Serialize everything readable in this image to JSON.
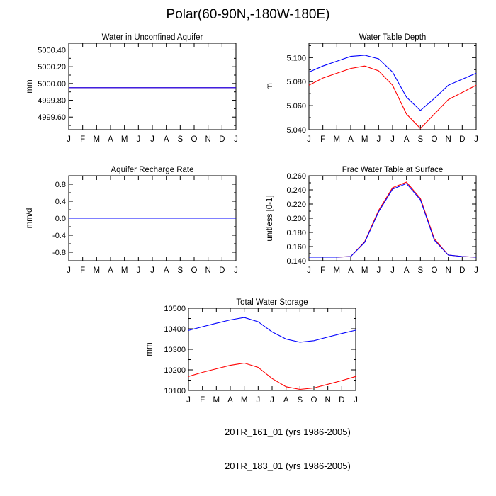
{
  "page": {
    "title": "Polar(60-90N,-180W-180E)"
  },
  "legend": [
    {
      "label": "20TR_161_01 (yrs 1986-2005)",
      "color": "#0000ff"
    },
    {
      "label": "20TR_183_01 (yrs 1986-2005)",
      "color": "#ff0000"
    }
  ],
  "chart_data": [
    {
      "type": "line",
      "title": "Water in Unconfined Aquifer",
      "xlabel": "",
      "ylabel": "mm",
      "categories": [
        "J",
        "F",
        "M",
        "A",
        "M",
        "J",
        "J",
        "A",
        "S",
        "O",
        "N",
        "D",
        "J"
      ],
      "ylim": [
        4999.45,
        5000.48
      ],
      "yticks": [
        4999.6,
        4999.8,
        5000.0,
        5000.2,
        5000.4
      ],
      "ytick_labels": [
        "4999.60",
        "4999.80",
        "5000.00",
        "5000.20",
        "5000.40"
      ],
      "series": [
        {
          "name": "20TR_161_01 (yrs 1986-2005)",
          "color": "#0000ff",
          "values": [
            4999.95,
            4999.95,
            4999.95,
            4999.95,
            4999.95,
            4999.95,
            4999.95,
            4999.95,
            4999.95,
            4999.95,
            4999.95,
            4999.95,
            4999.95
          ]
        },
        {
          "name": "20TR_183_01 (yrs 1986-2005)",
          "color": "#ff0000",
          "values": [
            4999.95,
            4999.95,
            4999.95,
            4999.95,
            4999.95,
            4999.95,
            4999.95,
            4999.95,
            4999.95,
            4999.95,
            4999.95,
            4999.95,
            4999.95
          ]
        }
      ]
    },
    {
      "type": "line",
      "title": "Water Table Depth",
      "xlabel": "",
      "ylabel": "m",
      "categories": [
        "J",
        "F",
        "M",
        "A",
        "M",
        "J",
        "J",
        "A",
        "S",
        "O",
        "N",
        "D",
        "J"
      ],
      "ylim": [
        5.04,
        5.112
      ],
      "yticks": [
        5.04,
        5.06,
        5.08,
        5.1
      ],
      "ytick_labels": [
        "5.040",
        "5.060",
        "5.080",
        "5.100"
      ],
      "series": [
        {
          "name": "20TR_161_01 (yrs 1986-2005)",
          "color": "#0000ff",
          "values": [
            5.088,
            5.093,
            5.097,
            5.101,
            5.102,
            5.099,
            5.088,
            5.067,
            5.056,
            5.066,
            5.077,
            5.082,
            5.087
          ]
        },
        {
          "name": "20TR_183_01 (yrs 1986-2005)",
          "color": "#ff0000",
          "values": [
            5.077,
            5.083,
            5.087,
            5.091,
            5.093,
            5.089,
            5.077,
            5.053,
            5.041,
            5.053,
            5.065,
            5.071,
            5.077
          ]
        }
      ]
    },
    {
      "type": "line",
      "title": "Aquifer Recharge Rate",
      "xlabel": "",
      "ylabel": "mm/d",
      "categories": [
        "J",
        "F",
        "M",
        "A",
        "M",
        "J",
        "J",
        "A",
        "S",
        "O",
        "N",
        "D",
        "J"
      ],
      "ylim": [
        -1.0,
        1.0
      ],
      "yticks": [
        -0.8,
        -0.4,
        0.0,
        0.4,
        0.8
      ],
      "ytick_labels": [
        "-0.8",
        "-0.4",
        "0.0",
        "0.4",
        "0.8"
      ],
      "series": [
        {
          "name": "20TR_161_01 (yrs 1986-2005)",
          "color": "#0000ff",
          "values": [
            0,
            0,
            0,
            0,
            0,
            0,
            0,
            0,
            0,
            0,
            0,
            0,
            0
          ]
        },
        {
          "name": "20TR_183_01 (yrs 1986-2005)",
          "color": "#ff0000",
          "values": [
            0,
            0,
            0,
            0,
            0,
            0,
            0,
            0,
            0,
            0,
            0,
            0,
            0
          ]
        }
      ]
    },
    {
      "type": "line",
      "title": "Frac Water Table at Surface",
      "xlabel": "",
      "ylabel": "unitless [0-1]",
      "categories": [
        "J",
        "F",
        "M",
        "A",
        "M",
        "J",
        "J",
        "A",
        "S",
        "O",
        "N",
        "D",
        "J"
      ],
      "ylim": [
        0.14,
        0.26
      ],
      "yticks": [
        0.14,
        0.16,
        0.18,
        0.2,
        0.22,
        0.24,
        0.26
      ],
      "ytick_labels": [
        "0.140",
        "0.160",
        "0.180",
        "0.200",
        "0.220",
        "0.240",
        "0.260"
      ],
      "series": [
        {
          "name": "20TR_161_01 (yrs 1986-2005)",
          "color": "#0000ff",
          "values": [
            0.145,
            0.145,
            0.145,
            0.146,
            0.166,
            0.209,
            0.241,
            0.249,
            0.226,
            0.169,
            0.148,
            0.146,
            0.145
          ]
        },
        {
          "name": "20TR_183_01 (yrs 1986-2005)",
          "color": "#ff0000",
          "values": [
            0.145,
            0.145,
            0.145,
            0.146,
            0.167,
            0.211,
            0.243,
            0.251,
            0.228,
            0.171,
            0.148,
            0.146,
            0.145
          ]
        }
      ]
    },
    {
      "type": "line",
      "title": "Total Water Storage",
      "xlabel": "",
      "ylabel": "mm",
      "categories": [
        "J",
        "F",
        "M",
        "A",
        "M",
        "J",
        "J",
        "A",
        "S",
        "O",
        "N",
        "D",
        "J"
      ],
      "ylim": [
        10100,
        10500
      ],
      "yticks": [
        10100,
        10200,
        10300,
        10400,
        10500
      ],
      "ytick_labels": [
        "10100",
        "10200",
        "10300",
        "10400",
        "10500"
      ],
      "series": [
        {
          "name": "20TR_161_01 (yrs 1986-2005)",
          "color": "#0000ff",
          "values": [
            10392,
            10410,
            10427,
            10443,
            10455,
            10434,
            10385,
            10350,
            10335,
            10342,
            10360,
            10377,
            10393
          ]
        },
        {
          "name": "20TR_183_01 (yrs 1986-2005)",
          "color": "#ff0000",
          "values": [
            10168,
            10188,
            10205,
            10222,
            10233,
            10212,
            10158,
            10118,
            10105,
            10112,
            10130,
            10148,
            10168
          ]
        }
      ]
    }
  ]
}
